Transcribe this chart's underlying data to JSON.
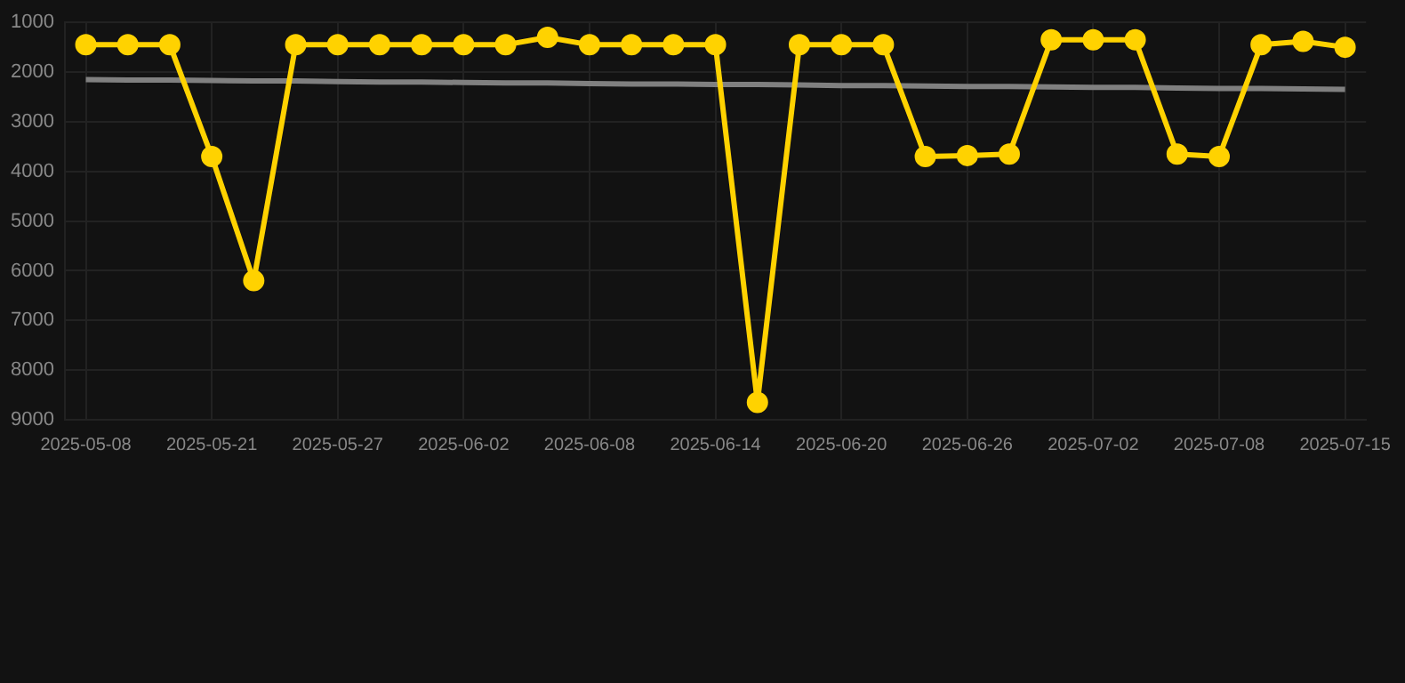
{
  "chart_data": {
    "type": "line",
    "categories": [
      "2025-05-08",
      null,
      null,
      "2025-05-21",
      null,
      null,
      "2025-05-27",
      null,
      null,
      "2025-06-02",
      null,
      null,
      "2025-06-08",
      null,
      null,
      "2025-06-14",
      null,
      null,
      "2025-06-20",
      null,
      null,
      "2025-06-26",
      null,
      null,
      "2025-07-02",
      null,
      null,
      "2025-07-08",
      null,
      null,
      "2025-07-15"
    ],
    "series": [
      {
        "color": "#ffd200",
        "values": [
          1450,
          1450,
          1450,
          3700,
          6200,
          1450,
          1450,
          1450,
          1450,
          1450,
          1450,
          1300,
          1450,
          1450,
          1450,
          1450,
          8650,
          1450,
          1450,
          1450,
          3700,
          3680,
          3650,
          1350,
          1350,
          1350,
          3650,
          3700,
          1450,
          1380,
          1500
        ],
        "marker": "circle"
      },
      {
        "type": "line",
        "color": "#808080",
        "values": [
          2150,
          2160,
          2160,
          2170,
          2180,
          2180,
          2190,
          2200,
          2200,
          2210,
          2220,
          2220,
          2230,
          2240,
          2240,
          2250,
          2250,
          2260,
          2270,
          2270,
          2280,
          2290,
          2290,
          2300,
          2310,
          2310,
          2320,
          2330,
          2330,
          2340,
          2350
        ],
        "marker": "none"
      }
    ],
    "ylim": [
      9000,
      1000
    ],
    "yticks": [
      1000,
      2000,
      3000,
      4000,
      5000,
      6000,
      7000,
      8000,
      9000
    ],
    "grid": true,
    "legend": false
  }
}
